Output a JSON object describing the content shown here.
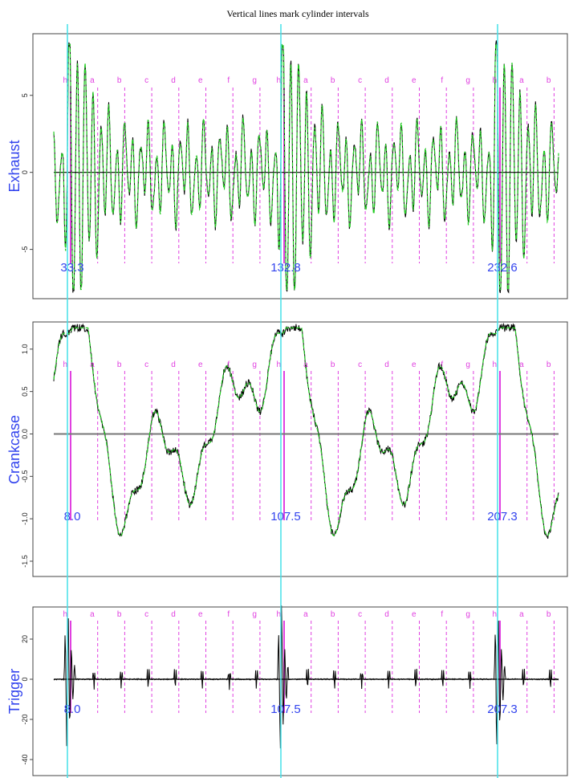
{
  "title": "Vertical lines mark cylinder intervals",
  "colors": {
    "cycle_line": "#45e0e8",
    "cylinder_line": "#e040e0",
    "fitted": "#22cc22",
    "signal": "#000000",
    "zero_line": "#000000",
    "label": "#3344ee"
  },
  "chart_data": [
    {
      "type": "line",
      "id": "exhaust",
      "ylabel": "Exhaust",
      "yticks": [
        5,
        0,
        -5
      ],
      "ylim": [
        -8.2,
        9.0
      ],
      "zero_color": "#000000",
      "series": [
        {
          "role": "signal",
          "color": "#000000"
        },
        {
          "role": "fitted",
          "color": "#22cc22"
        }
      ],
      "cylinder_labels": [
        "h",
        "a",
        "b",
        "c",
        "d",
        "e",
        "f",
        "g",
        "h",
        "a",
        "b",
        "c",
        "d",
        "e",
        "f",
        "g",
        "h",
        "a",
        "b"
      ],
      "annotations": [
        "33.3",
        "132.8",
        "232.6"
      ]
    },
    {
      "type": "line",
      "id": "crankcase",
      "ylabel": "Crankcase",
      "yticks": [
        1.0,
        0.5,
        0.0,
        -0.5,
        -1.0,
        -1.5
      ],
      "ylim": [
        -1.68,
        1.32
      ],
      "zero_color": "#777777",
      "series": [
        {
          "role": "signal",
          "color": "#000000"
        },
        {
          "role": "fitted",
          "color": "#22cc22"
        }
      ],
      "cylinder_labels": [
        "h",
        "a",
        "b",
        "c",
        "d",
        "e",
        "f",
        "g",
        "h",
        "a",
        "b",
        "c",
        "d",
        "e",
        "f",
        "g",
        "h",
        "a",
        "b"
      ],
      "annotations": [
        "8.0",
        "107.5",
        "207.3"
      ]
    },
    {
      "type": "line",
      "id": "trigger",
      "ylabel": "Trigger",
      "yticks": [
        20,
        0,
        -20,
        -40
      ],
      "ylim": [
        -48,
        36
      ],
      "zero_color": "#000000",
      "series": [
        {
          "role": "signal",
          "color": "#000000"
        }
      ],
      "cylinder_labels": [
        "h",
        "a",
        "b",
        "c",
        "d",
        "e",
        "f",
        "g",
        "h",
        "a",
        "b",
        "c",
        "d",
        "e",
        "f",
        "g",
        "h",
        "a",
        "b"
      ],
      "annotations": [
        "8.0",
        "107.5",
        "207.3"
      ]
    }
  ]
}
